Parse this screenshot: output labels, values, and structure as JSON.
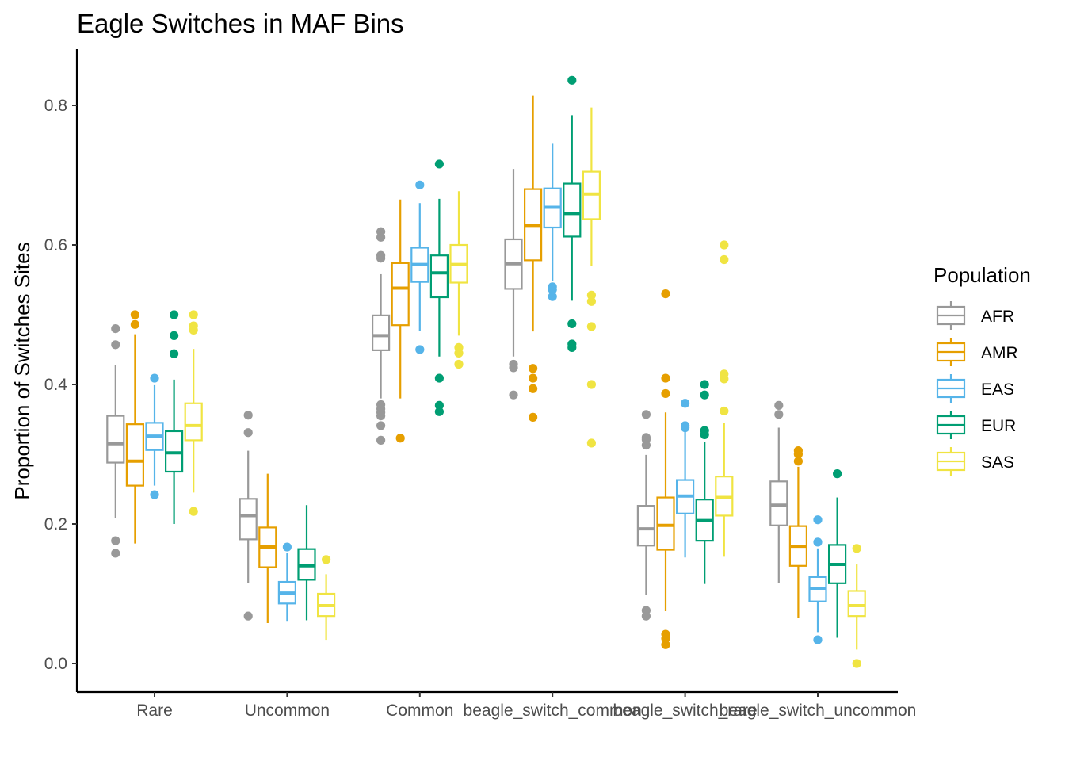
{
  "chart_data": {
    "type": "boxplot",
    "title": "Eagle Switches in MAF Bins",
    "xlabel": "",
    "ylabel": "Proportion of Switches Sites",
    "ylim": [
      -0.04,
      0.88
    ],
    "yticks": [
      0.0,
      0.2,
      0.4,
      0.6,
      0.8
    ],
    "ytick_labels": [
      "0.0",
      "0.2",
      "0.4",
      "0.6",
      "0.8"
    ],
    "grid": false,
    "legend": {
      "title": "Population",
      "position": "right"
    },
    "categories": [
      "Rare",
      "Uncommon",
      "Common",
      "beagle_switch_common",
      "beagle_switch_rare",
      "beagle_switch_uncommon"
    ],
    "series": [
      {
        "name": "AFR",
        "color": "#999999",
        "boxes": [
          {
            "q1": 0.288,
            "median": 0.315,
            "q3": 0.355,
            "wlo": 0.208,
            "whi": 0.428,
            "outliers": [
              0.48,
              0.457,
              0.176,
              0.158
            ]
          },
          {
            "q1": 0.178,
            "median": 0.212,
            "q3": 0.236,
            "wlo": 0.115,
            "whi": 0.305,
            "outliers": [
              0.356,
              0.331,
              0.068
            ]
          },
          {
            "q1": 0.449,
            "median": 0.47,
            "q3": 0.499,
            "wlo": 0.38,
            "whi": 0.558,
            "outliers": [
              0.619,
              0.611,
              0.585,
              0.581,
              0.371,
              0.365,
              0.36,
              0.355,
              0.341,
              0.32
            ]
          },
          {
            "q1": 0.537,
            "median": 0.573,
            "q3": 0.608,
            "wlo": 0.44,
            "whi": 0.709,
            "outliers": [
              0.429,
              0.424,
              0.385
            ]
          },
          {
            "q1": 0.169,
            "median": 0.193,
            "q3": 0.226,
            "wlo": 0.098,
            "whi": 0.299,
            "outliers": [
              0.357,
              0.324,
              0.321,
              0.313,
              0.076,
              0.068
            ]
          },
          {
            "q1": 0.198,
            "median": 0.227,
            "q3": 0.261,
            "wlo": 0.115,
            "whi": 0.338,
            "outliers": [
              0.37,
              0.357
            ]
          }
        ]
      },
      {
        "name": "AMR",
        "color": "#E69F00",
        "boxes": [
          {
            "q1": 0.255,
            "median": 0.29,
            "q3": 0.343,
            "wlo": 0.172,
            "whi": 0.472,
            "outliers": [
              0.5,
              0.486
            ]
          },
          {
            "q1": 0.138,
            "median": 0.167,
            "q3": 0.195,
            "wlo": 0.058,
            "whi": 0.272,
            "outliers": []
          },
          {
            "q1": 0.485,
            "median": 0.538,
            "q3": 0.574,
            "wlo": 0.38,
            "whi": 0.665,
            "outliers": [
              0.323
            ]
          },
          {
            "q1": 0.578,
            "median": 0.628,
            "q3": 0.68,
            "wlo": 0.476,
            "whi": 0.814,
            "outliers": [
              0.423,
              0.409,
              0.394,
              0.353
            ]
          },
          {
            "q1": 0.163,
            "median": 0.198,
            "q3": 0.238,
            "wlo": 0.075,
            "whi": 0.36,
            "outliers": [
              0.53,
              0.409,
              0.387,
              0.042,
              0.036,
              0.027
            ]
          },
          {
            "q1": 0.14,
            "median": 0.168,
            "q3": 0.197,
            "wlo": 0.065,
            "whi": 0.282,
            "outliers": [
              0.305,
              0.3,
              0.29
            ]
          }
        ]
      },
      {
        "name": "EAS",
        "color": "#56B4E9",
        "boxes": [
          {
            "q1": 0.306,
            "median": 0.326,
            "q3": 0.345,
            "wlo": 0.255,
            "whi": 0.399,
            "outliers": [
              0.409,
              0.242
            ]
          },
          {
            "q1": 0.086,
            "median": 0.101,
            "q3": 0.117,
            "wlo": 0.06,
            "whi": 0.158,
            "outliers": [
              0.167
            ]
          },
          {
            "q1": 0.547,
            "median": 0.572,
            "q3": 0.596,
            "wlo": 0.477,
            "whi": 0.66,
            "outliers": [
              0.686,
              0.45
            ]
          },
          {
            "q1": 0.625,
            "median": 0.654,
            "q3": 0.681,
            "wlo": 0.548,
            "whi": 0.745,
            "outliers": [
              0.54,
              0.536,
              0.526
            ]
          },
          {
            "q1": 0.215,
            "median": 0.24,
            "q3": 0.263,
            "wlo": 0.152,
            "whi": 0.332,
            "outliers": [
              0.373,
              0.341,
              0.338
            ]
          },
          {
            "q1": 0.089,
            "median": 0.108,
            "q3": 0.124,
            "wlo": 0.045,
            "whi": 0.165,
            "outliers": [
              0.206,
              0.174,
              0.034
            ]
          }
        ]
      },
      {
        "name": "EUR",
        "color": "#009E73",
        "boxes": [
          {
            "q1": 0.275,
            "median": 0.302,
            "q3": 0.333,
            "wlo": 0.2,
            "whi": 0.407,
            "outliers": [
              0.5,
              0.47,
              0.444
            ]
          },
          {
            "q1": 0.12,
            "median": 0.14,
            "q3": 0.164,
            "wlo": 0.062,
            "whi": 0.227,
            "outliers": []
          },
          {
            "q1": 0.525,
            "median": 0.56,
            "q3": 0.585,
            "wlo": 0.44,
            "whi": 0.666,
            "outliers": [
              0.716,
              0.409,
              0.37,
              0.361
            ]
          },
          {
            "q1": 0.612,
            "median": 0.645,
            "q3": 0.688,
            "wlo": 0.52,
            "whi": 0.786,
            "outliers": [
              0.836,
              0.487,
              0.458,
              0.453
            ]
          },
          {
            "q1": 0.176,
            "median": 0.205,
            "q3": 0.235,
            "wlo": 0.114,
            "whi": 0.317,
            "outliers": [
              0.4,
              0.385,
              0.334,
              0.328
            ]
          },
          {
            "q1": 0.115,
            "median": 0.142,
            "q3": 0.17,
            "wlo": 0.037,
            "whi": 0.238,
            "outliers": [
              0.272
            ]
          }
        ]
      },
      {
        "name": "SAS",
        "color": "#F0E442",
        "boxes": [
          {
            "q1": 0.32,
            "median": 0.341,
            "q3": 0.373,
            "wlo": 0.245,
            "whi": 0.451,
            "outliers": [
              0.5,
              0.484,
              0.478,
              0.218
            ]
          },
          {
            "q1": 0.068,
            "median": 0.083,
            "q3": 0.1,
            "wlo": 0.034,
            "whi": 0.128,
            "outliers": [
              0.149
            ]
          },
          {
            "q1": 0.546,
            "median": 0.572,
            "q3": 0.6,
            "wlo": 0.47,
            "whi": 0.677,
            "outliers": [
              0.453,
              0.445,
              0.429
            ]
          },
          {
            "q1": 0.637,
            "median": 0.673,
            "q3": 0.705,
            "wlo": 0.57,
            "whi": 0.797,
            "outliers": [
              0.528,
              0.519,
              0.483,
              0.4,
              0.316
            ]
          },
          {
            "q1": 0.212,
            "median": 0.238,
            "q3": 0.268,
            "wlo": 0.153,
            "whi": 0.345,
            "outliers": [
              0.6,
              0.579,
              0.415,
              0.408,
              0.362
            ]
          },
          {
            "q1": 0.068,
            "median": 0.083,
            "q3": 0.104,
            "wlo": 0.02,
            "whi": 0.142,
            "outliers": [
              0.165,
              0.0
            ]
          }
        ]
      }
    ]
  }
}
